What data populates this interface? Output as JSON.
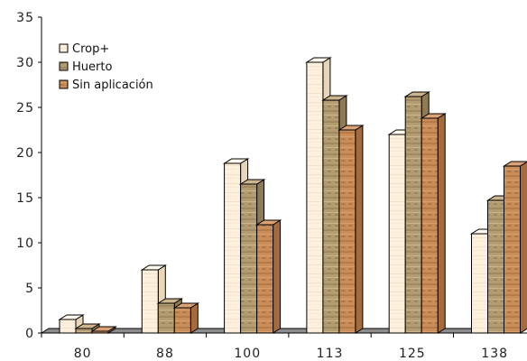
{
  "chart_data": {
    "type": "bar",
    "title": "",
    "xlabel": "",
    "ylabel": "",
    "categories": [
      "80",
      "88",
      "100",
      "113",
      "125",
      "138"
    ],
    "series": [
      {
        "name": "Crop+",
        "values": [
          1.5,
          7,
          18.8,
          30,
          22,
          11
        ]
      },
      {
        "name": "Huerto",
        "values": [
          0.5,
          3.3,
          16.5,
          25.8,
          26.2,
          14.7
        ]
      },
      {
        "name": "Sin aplicación",
        "values": [
          0.2,
          2.8,
          12,
          22.5,
          23.8,
          18.5
        ]
      }
    ],
    "ylim": [
      0,
      35
    ],
    "yticks": [
      0,
      5,
      10,
      15,
      20,
      25,
      30,
      35
    ],
    "ytick_labels": [
      "0",
      "5",
      "10",
      "15",
      "20",
      "25",
      "30",
      "35"
    ],
    "legend_position": "top-left",
    "grid": false,
    "three_d": true,
    "colors": {
      "Crop+": "#fdf0dc",
      "Huerto": "#b39c72",
      "Sin aplicación": "#c98d58",
      "floor": "#8c8c8c"
    }
  }
}
